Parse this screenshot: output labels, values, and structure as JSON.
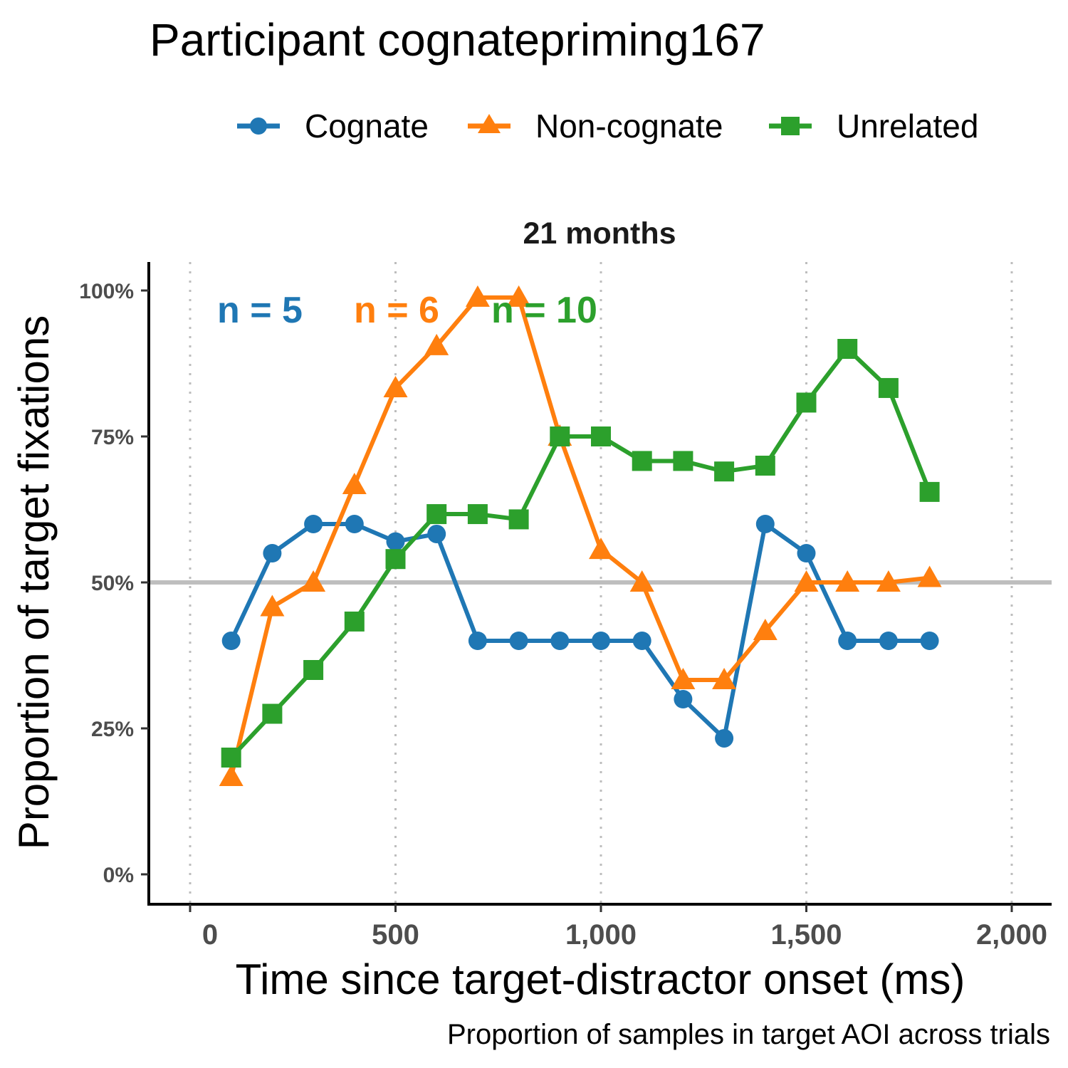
{
  "chart_data": {
    "type": "line",
    "title": "Participant cognatepriming167",
    "facet_label": "21 months",
    "xlabel": "Time since target-distractor onset (ms)",
    "ylabel": "Proportion of target fixations",
    "caption": "Proportion of samples in target AOI across trials",
    "xlim": [
      -100,
      2100
    ],
    "ylim": [
      -0.045,
      1.045
    ],
    "x_ticks": [
      0,
      500,
      1000,
      1500,
      2000
    ],
    "x_tick_labels": [
      "0",
      "500",
      "1,000",
      "1,500",
      "2,000"
    ],
    "y_ticks": [
      0,
      0.25,
      0.5,
      0.75,
      1.0
    ],
    "y_tick_labels": [
      "0%",
      "25%",
      "50%",
      "75%",
      "100%"
    ],
    "reference_line_y": 0.5,
    "grid": "vertical dotted at x ticks",
    "legend_position": "top",
    "series": [
      {
        "name": "Cognate",
        "color": "#1f77b4",
        "marker": "circle",
        "n_label": "n = 5",
        "points": [
          [
            100,
            0.4
          ],
          [
            200,
            0.55
          ],
          [
            300,
            0.6
          ],
          [
            400,
            0.6
          ],
          [
            500,
            0.57
          ],
          [
            600,
            0.583
          ],
          [
            700,
            0.4
          ],
          [
            800,
            0.4
          ],
          [
            900,
            0.4
          ],
          [
            1000,
            0.4
          ],
          [
            1100,
            0.4
          ],
          [
            1200,
            0.3
          ],
          [
            1300,
            0.233
          ],
          [
            1400,
            0.6
          ],
          [
            1500,
            0.55
          ],
          [
            1600,
            0.4
          ],
          [
            1700,
            0.4
          ],
          [
            1800,
            0.4
          ]
        ]
      },
      {
        "name": "Non-cognate",
        "color": "#ff7f0e",
        "marker": "triangle",
        "n_label": "n = 6",
        "points": [
          [
            100,
            0.167
          ],
          [
            200,
            0.458
          ],
          [
            300,
            0.5
          ],
          [
            400,
            0.667
          ],
          [
            500,
            0.833
          ],
          [
            600,
            0.905
          ],
          [
            700,
            0.988
          ],
          [
            800,
            0.988
          ],
          [
            900,
            0.75
          ],
          [
            1000,
            0.556
          ],
          [
            1100,
            0.5
          ],
          [
            1200,
            0.333
          ],
          [
            1300,
            0.333
          ],
          [
            1400,
            0.417
          ],
          [
            1500,
            0.5
          ],
          [
            1600,
            0.5
          ],
          [
            1700,
            0.5
          ],
          [
            1800,
            0.508
          ]
        ]
      },
      {
        "name": "Unrelated",
        "color": "#2ca02c",
        "marker": "square",
        "n_label": "n = 10",
        "points": [
          [
            100,
            0.2
          ],
          [
            200,
            0.275
          ],
          [
            300,
            0.35
          ],
          [
            400,
            0.433
          ],
          [
            500,
            0.54
          ],
          [
            600,
            0.617
          ],
          [
            700,
            0.617
          ],
          [
            800,
            0.608
          ],
          [
            900,
            0.75
          ],
          [
            1000,
            0.75
          ],
          [
            1100,
            0.708
          ],
          [
            1200,
            0.708
          ],
          [
            1300,
            0.69
          ],
          [
            1400,
            0.7
          ],
          [
            1500,
            0.808
          ],
          [
            1600,
            0.9
          ],
          [
            1700,
            0.833
          ],
          [
            1800,
            0.655
          ]
        ]
      }
    ]
  }
}
